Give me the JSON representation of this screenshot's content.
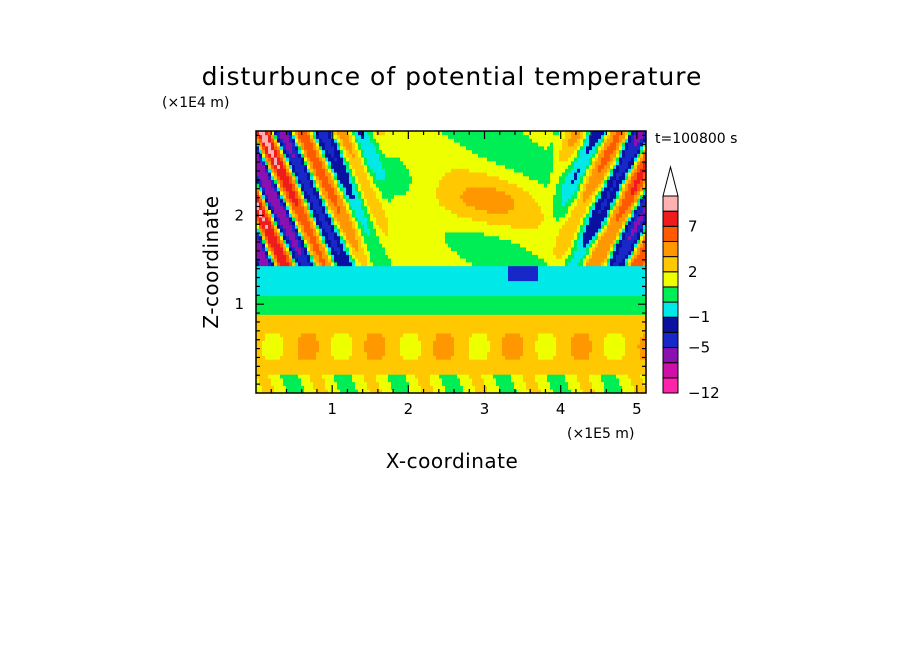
{
  "chart_data": {
    "type": "heatmap",
    "title": "disturbunce of potential temperature",
    "xlabel": "X-coordinate",
    "ylabel": "Z-coordinate",
    "x_unit": "(×1E5 m)",
    "y_unit": "(×1E4 m)",
    "time_label": "t=100800 s",
    "xlim": [
      0,
      5.12
    ],
    "ylim": [
      0,
      2.95
    ],
    "x_ticks": [
      1,
      2,
      3,
      4,
      5
    ],
    "y_ticks": [
      1,
      2
    ],
    "colorbar": {
      "levels": [
        -12,
        -10,
        -8,
        -5,
        -3,
        -1,
        0,
        1,
        2,
        3,
        5,
        7,
        9,
        11
      ],
      "labels": [
        {
          "value": -12,
          "text": "−12"
        },
        {
          "value": -5,
          "text": "−5"
        },
        {
          "value": -1,
          "text": "−1"
        },
        {
          "value": 2,
          "text": "2"
        },
        {
          "value": 7,
          "text": "7"
        }
      ],
      "colors": [
        "#ff22aa",
        "#cc10a8",
        "#8a10b0",
        "#1828c8",
        "#0a10a0",
        "#00e8e8",
        "#00ee55",
        "#eeff00",
        "#ffc800",
        "#ff9800",
        "#ff5a00",
        "#ee1c1c",
        "#ffb0b0"
      ],
      "over_color": "#ffffff"
    },
    "field_description_bands": [
      {
        "z_range": [
          0,
          0.2
        ],
        "value": 1.5
      },
      {
        "z_range": [
          0.2,
          0.9
        ],
        "value": 2.5
      },
      {
        "z_range": [
          0.9,
          1.1
        ],
        "value": 0.5
      },
      {
        "z_range": [
          1.1,
          1.45
        ],
        "value": -0.5
      },
      {
        "z_range": [
          1.45,
          2.95
        ],
        "value": 1.5
      }
    ]
  }
}
